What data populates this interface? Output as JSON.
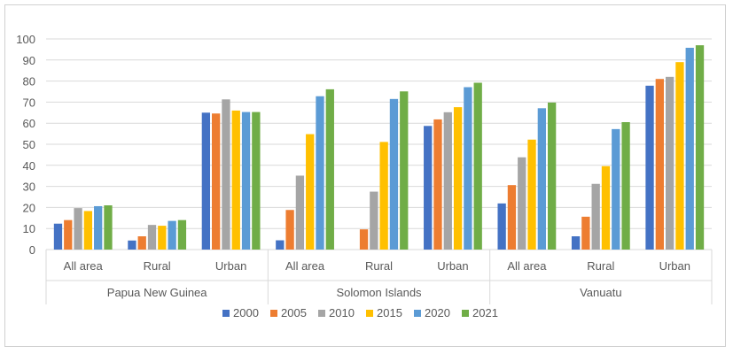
{
  "chart_data": {
    "type": "bar",
    "title": "",
    "xlabel": "",
    "ylabel": "",
    "ylim": [
      0,
      100
    ],
    "yticks": [
      0,
      10,
      20,
      30,
      40,
      50,
      60,
      70,
      80,
      90,
      100
    ],
    "grid": true,
    "legend_position": "bottom",
    "groups": [
      {
        "label": "Papua New Guinea",
        "categories": [
          "All area",
          "Rural",
          "Urban"
        ]
      },
      {
        "label": "Solomon Islands",
        "categories": [
          "All area",
          "Rural",
          "Urban"
        ]
      },
      {
        "label": "Vanuatu",
        "categories": [
          "All area",
          "Rural",
          "Urban"
        ]
      }
    ],
    "series": [
      {
        "name": "2000",
        "color": "#4472c4",
        "values": [
          12.3,
          4.3,
          65,
          4.4,
          null,
          58.7,
          21.9,
          6.3,
          77.8
        ]
      },
      {
        "name": "2005",
        "color": "#ed7d31",
        "values": [
          14,
          6.3,
          64.6,
          18.8,
          9.6,
          61.8,
          30.6,
          15.6,
          81
        ]
      },
      {
        "name": "2010",
        "color": "#a5a5a5",
        "values": [
          19.7,
          11.7,
          71.3,
          35.1,
          27.5,
          65.2,
          43.8,
          31.2,
          82
        ]
      },
      {
        "name": "2015",
        "color": "#ffc000",
        "values": [
          18.3,
          11.3,
          66,
          54.8,
          51.1,
          67.6,
          52.2,
          39.6,
          89
        ]
      },
      {
        "name": "2020",
        "color": "#5b9bd5",
        "values": [
          20.6,
          13.6,
          65.3,
          72.8,
          71.5,
          77.1,
          67.1,
          57.2,
          95.8
        ]
      },
      {
        "name": "2021",
        "color": "#70ad47",
        "values": [
          21,
          14,
          65.3,
          76.1,
          75.1,
          79.2,
          69.8,
          60.5,
          97
        ]
      }
    ]
  }
}
